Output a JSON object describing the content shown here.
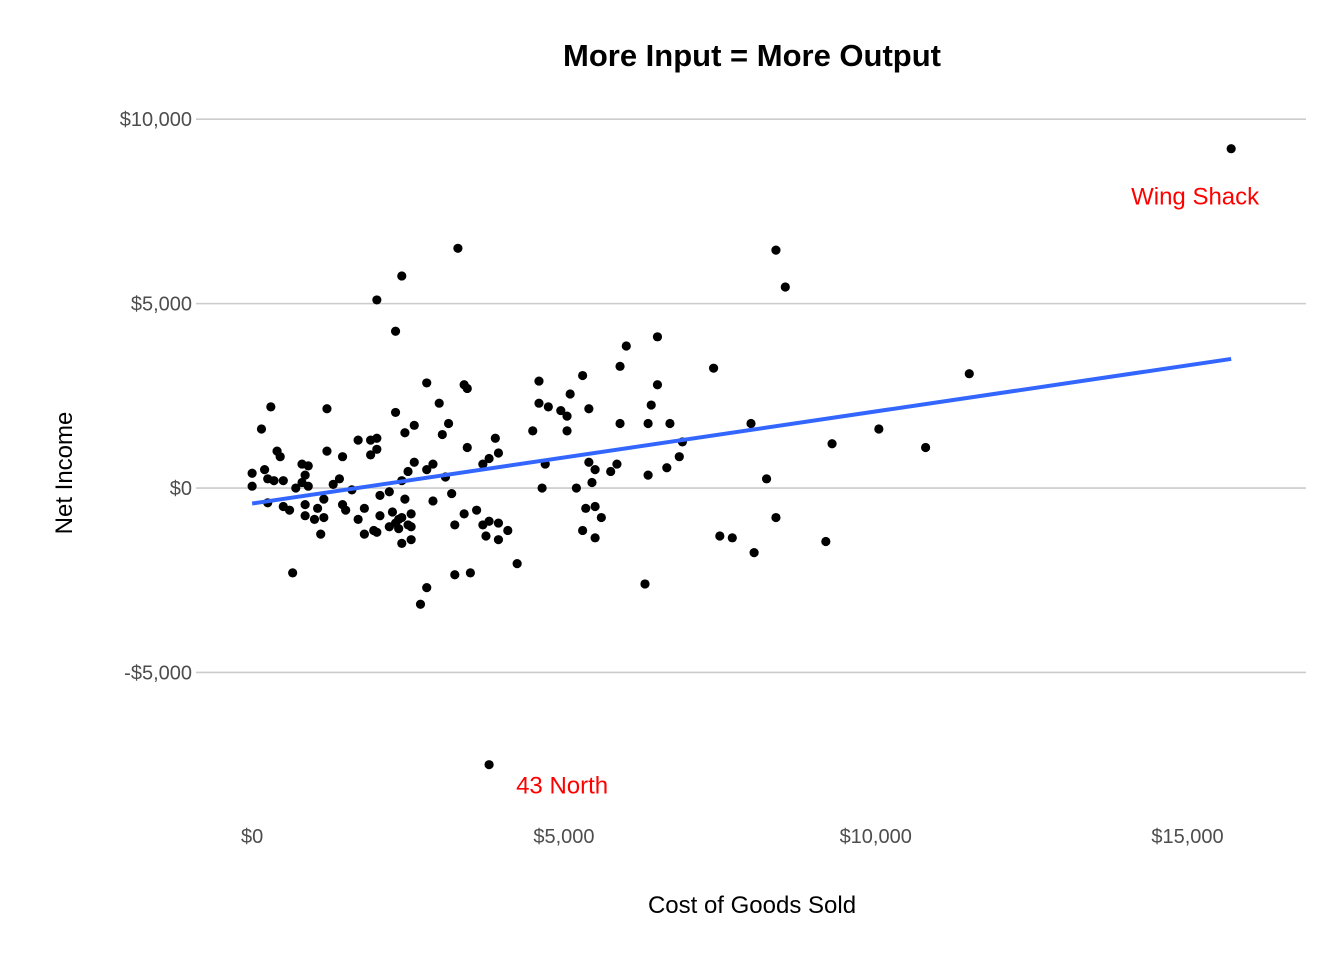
{
  "chart_data": {
    "type": "scatter",
    "title": "More Input = More Output",
    "xlabel": "Cost of Goods Sold",
    "ylabel": "Net Income",
    "xlim": [
      -900,
      16900
    ],
    "ylim": [
      -9000,
      10900
    ],
    "x_ticks": [
      0,
      5000,
      10000,
      15000
    ],
    "x_tick_labels": [
      "$0",
      "$5,000",
      "$10,000",
      "$15,000"
    ],
    "y_ticks": [
      -5000,
      0,
      5000,
      10000
    ],
    "y_tick_labels": [
      "-$5,000",
      "$0",
      "$5,000",
      "$10,000"
    ],
    "grid": true,
    "legend": "none",
    "point_color": "#000000",
    "trend_line": {
      "method": "linear",
      "color": "#3366ff",
      "x": [
        0,
        15700
      ],
      "y": [
        -420,
        3500
      ]
    },
    "annotations": [
      {
        "text": "Wing Shack",
        "x": 15700,
        "y": 9200,
        "color": "#ff0000"
      },
      {
        "text": "43 North",
        "x": 3800,
        "y": -7500,
        "color": "#ff0000"
      }
    ],
    "points": [
      [
        15700,
        9200
      ],
      [
        3800,
        -7500
      ],
      [
        3300,
        6500
      ],
      [
        8400,
        6450
      ],
      [
        2400,
        5750
      ],
      [
        8550,
        5450
      ],
      [
        2000,
        5100
      ],
      [
        2300,
        4250
      ],
      [
        6500,
        4100
      ],
      [
        6000,
        3850
      ],
      [
        5900,
        3300
      ],
      [
        7400,
        3250
      ],
      [
        5300,
        3050
      ],
      [
        11500,
        3100
      ],
      [
        4600,
        2900
      ],
      [
        2800,
        2850
      ],
      [
        3400,
        2800
      ],
      [
        3450,
        2700
      ],
      [
        6500,
        2800
      ],
      [
        5100,
        2550
      ],
      [
        4600,
        2300
      ],
      [
        3000,
        2300
      ],
      [
        4750,
        2200
      ],
      [
        6400,
        2250
      ],
      [
        300,
        2200
      ],
      [
        1200,
        2150
      ],
      [
        5400,
        2150
      ],
      [
        4950,
        2100
      ],
      [
        2300,
        2050
      ],
      [
        5050,
        1950
      ],
      [
        3150,
        1750
      ],
      [
        2600,
        1700
      ],
      [
        5900,
        1750
      ],
      [
        6350,
        1750
      ],
      [
        6700,
        1750
      ],
      [
        8000,
        1750
      ],
      [
        150,
        1600
      ],
      [
        4500,
        1550
      ],
      [
        2450,
        1500
      ],
      [
        3050,
        1450
      ],
      [
        5050,
        1550
      ],
      [
        10050,
        1600
      ],
      [
        3900,
        1350
      ],
      [
        1900,
        1300
      ],
      [
        2000,
        1350
      ],
      [
        1700,
        1300
      ],
      [
        6900,
        1250
      ],
      [
        9300,
        1200
      ],
      [
        10800,
        1100
      ],
      [
        3450,
        1100
      ],
      [
        2000,
        1050
      ],
      [
        1200,
        1000
      ],
      [
        400,
        1000
      ],
      [
        3950,
        950
      ],
      [
        6850,
        850
      ],
      [
        450,
        850
      ],
      [
        1450,
        850
      ],
      [
        1900,
        900
      ],
      [
        3800,
        800
      ],
      [
        2600,
        700
      ],
      [
        5400,
        700
      ],
      [
        2900,
        650
      ],
      [
        3700,
        650
      ],
      [
        4700,
        650
      ],
      [
        5850,
        650
      ],
      [
        900,
        600
      ],
      [
        800,
        650
      ],
      [
        2800,
        500
      ],
      [
        6650,
        550
      ],
      [
        200,
        500
      ],
      [
        2500,
        450
      ],
      [
        5750,
        450
      ],
      [
        5500,
        500
      ],
      [
        6350,
        350
      ],
      [
        0,
        400
      ],
      [
        850,
        350
      ],
      [
        3100,
        300
      ],
      [
        250,
        250
      ],
      [
        350,
        200
      ],
      [
        1400,
        250
      ],
      [
        2400,
        200
      ],
      [
        800,
        150
      ],
      [
        5450,
        150
      ],
      [
        1300,
        100
      ],
      [
        8250,
        250
      ],
      [
        500,
        200
      ],
      [
        900,
        50
      ],
      [
        0,
        50
      ],
      [
        700,
        0
      ],
      [
        4650,
        0
      ],
      [
        5200,
        0
      ],
      [
        1600,
        -50
      ],
      [
        2200,
        -100
      ],
      [
        3200,
        -150
      ],
      [
        2050,
        -200
      ],
      [
        1150,
        -300
      ],
      [
        2450,
        -300
      ],
      [
        2900,
        -350
      ],
      [
        250,
        -400
      ],
      [
        850,
        -450
      ],
      [
        1450,
        -450
      ],
      [
        5350,
        -550
      ],
      [
        5500,
        -500
      ],
      [
        3600,
        -600
      ],
      [
        500,
        -500
      ],
      [
        600,
        -600
      ],
      [
        1050,
        -550
      ],
      [
        1800,
        -550
      ],
      [
        2250,
        -650
      ],
      [
        1500,
        -600
      ],
      [
        2550,
        -700
      ],
      [
        2050,
        -750
      ],
      [
        2400,
        -800
      ],
      [
        3400,
        -700
      ],
      [
        850,
        -750
      ],
      [
        1000,
        -850
      ],
      [
        1700,
        -850
      ],
      [
        2350,
        -850
      ],
      [
        2300,
        -950
      ],
      [
        1150,
        -800
      ],
      [
        5600,
        -800
      ],
      [
        8400,
        -800
      ],
      [
        3800,
        -900
      ],
      [
        3950,
        -950
      ],
      [
        2500,
        -1000
      ],
      [
        3250,
        -1000
      ],
      [
        3700,
        -1000
      ],
      [
        2550,
        -1050
      ],
      [
        2200,
        -1050
      ],
      [
        2350,
        -1100
      ],
      [
        5300,
        -1150
      ],
      [
        4100,
        -1150
      ],
      [
        1950,
        -1150
      ],
      [
        1800,
        -1250
      ],
      [
        1100,
        -1250
      ],
      [
        3750,
        -1300
      ],
      [
        2000,
        -1200
      ],
      [
        7500,
        -1300
      ],
      [
        7700,
        -1350
      ],
      [
        5500,
        -1350
      ],
      [
        2550,
        -1400
      ],
      [
        3950,
        -1400
      ],
      [
        9200,
        -1450
      ],
      [
        2400,
        -1500
      ],
      [
        8050,
        -1750
      ],
      [
        4250,
        -2050
      ],
      [
        3500,
        -2300
      ],
      [
        3250,
        -2350
      ],
      [
        650,
        -2300
      ],
      [
        6300,
        -2600
      ],
      [
        2800,
        -2700
      ],
      [
        2700,
        -3150
      ]
    ]
  }
}
